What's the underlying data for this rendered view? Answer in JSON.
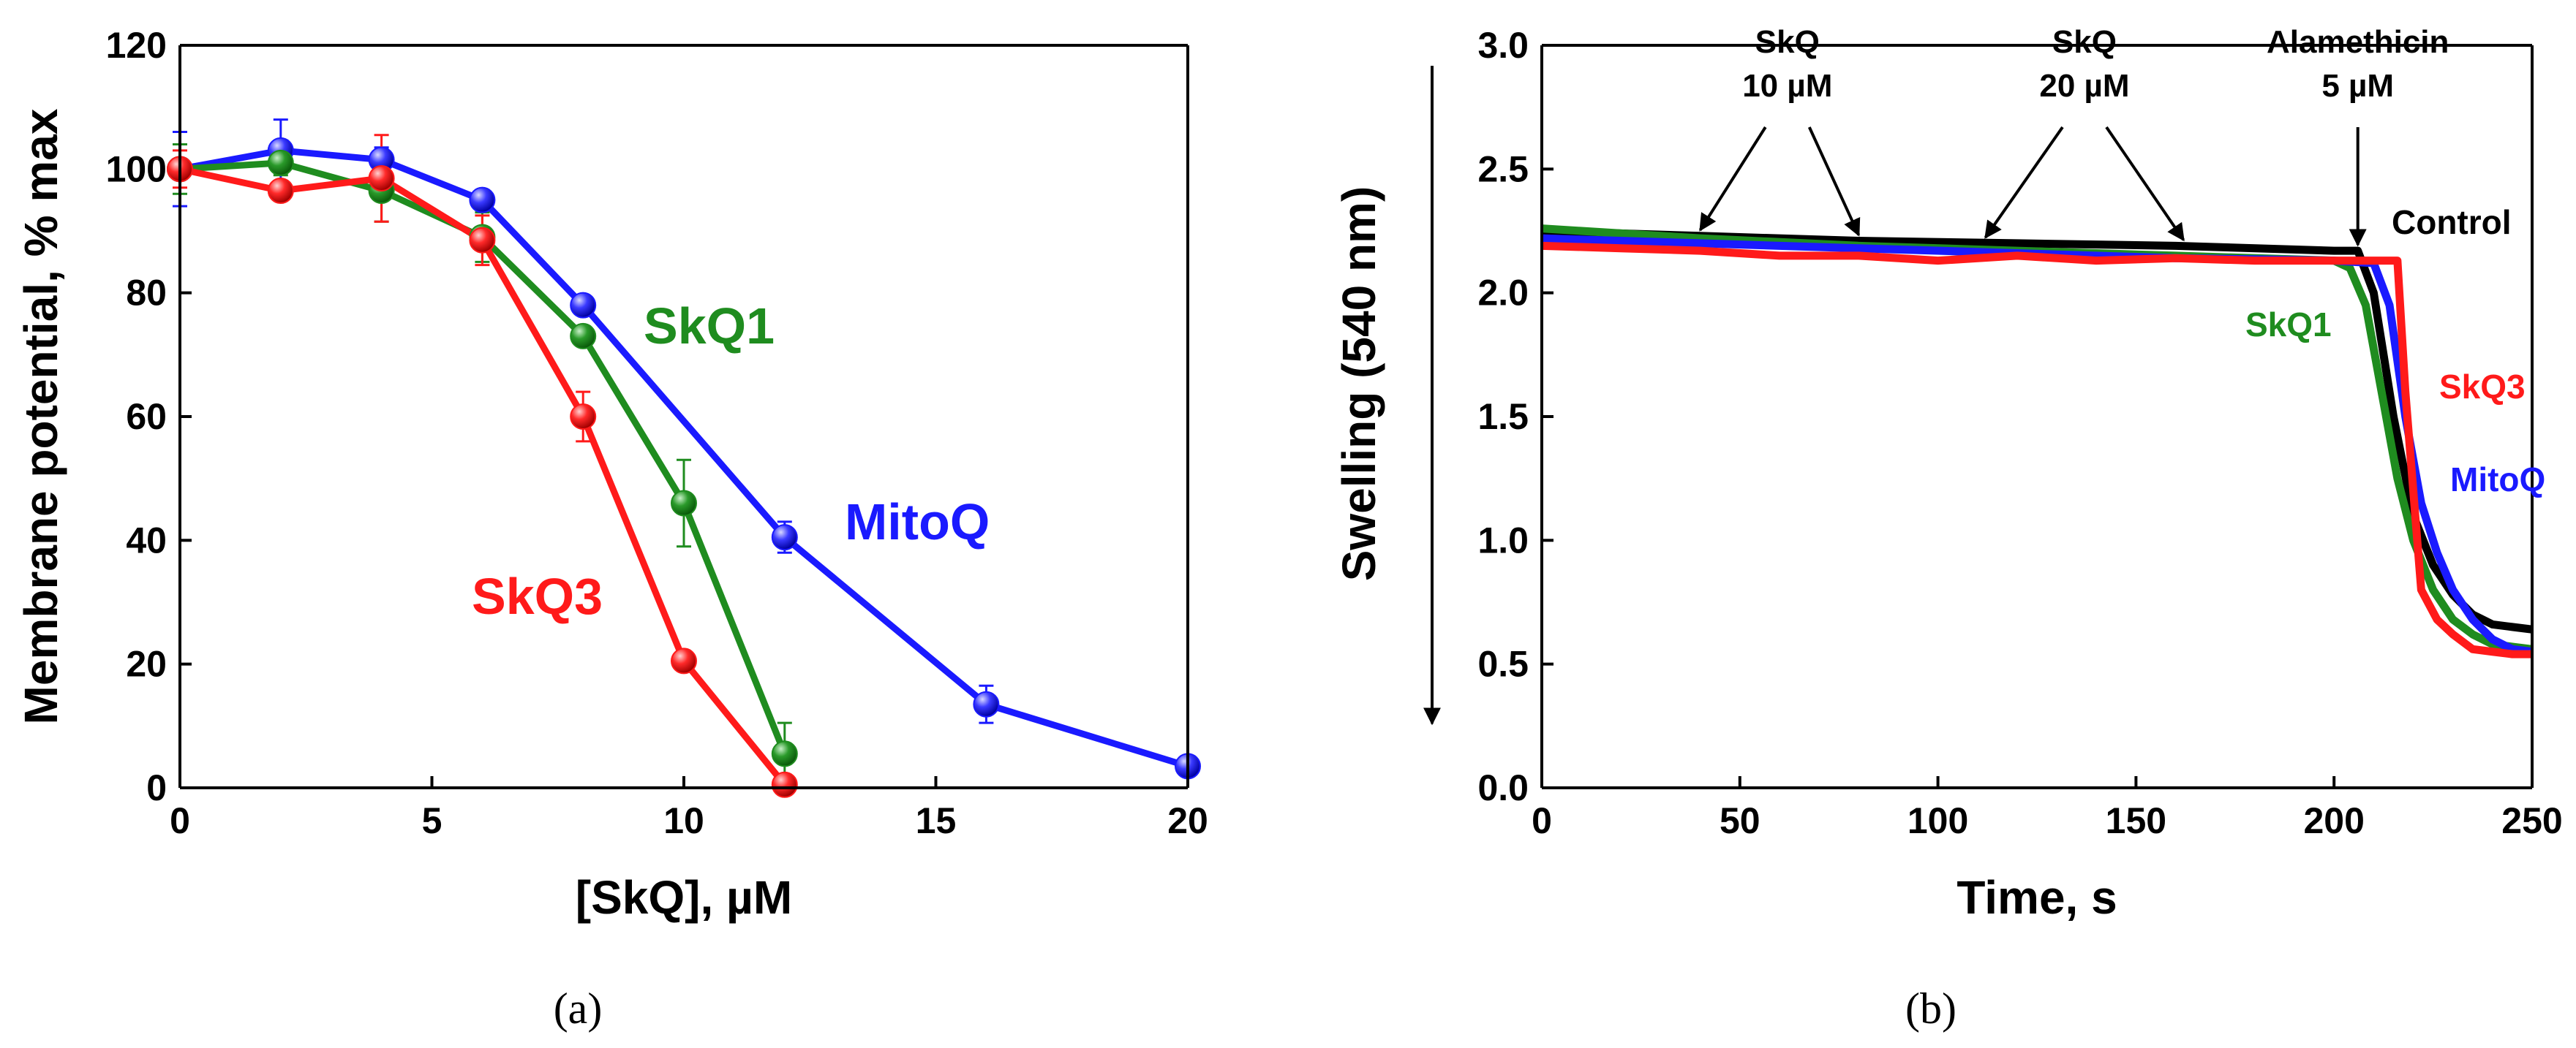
{
  "chart_data": [
    {
      "type": "line",
      "panel_label": "(a)",
      "xlabel": "[SkQ], µM",
      "ylabel": "Membrane potential, % max",
      "xlim": [
        0,
        20
      ],
      "ylim": [
        0,
        120
      ],
      "xticks": [
        0,
        5,
        10,
        15,
        20
      ],
      "yticks": [
        0,
        20,
        40,
        60,
        80,
        100,
        120
      ],
      "series": [
        {
          "name": "MitoQ",
          "color": "#1a1aff",
          "x": [
            0,
            2,
            4,
            6,
            8,
            12,
            16,
            20
          ],
          "y": [
            100,
            103,
            101.5,
            95,
            78,
            40.5,
            13.5,
            3.5
          ],
          "err": [
            6,
            5,
            2,
            1.5,
            1.5,
            2.5,
            3,
            1
          ]
        },
        {
          "name": "SkQ1",
          "color": "#1f8c1f",
          "x": [
            0,
            2,
            4,
            6,
            8,
            10,
            12
          ],
          "y": [
            100,
            101,
            96.5,
            89,
            73,
            46,
            5.5
          ],
          "err": [
            4,
            2,
            5,
            4,
            1.5,
            7,
            5
          ]
        },
        {
          "name": "SkQ3",
          "color": "#ff1a1a",
          "x": [
            0,
            2,
            4,
            6,
            8,
            10,
            12
          ],
          "y": [
            100,
            96.5,
            98.5,
            88.5,
            60,
            20.5,
            0.5
          ],
          "err": [
            3,
            1.5,
            7,
            4,
            4,
            1,
            1
          ]
        }
      ],
      "annotations": [
        "SkQ1",
        "MitoQ",
        "SkQ3"
      ]
    },
    {
      "type": "line",
      "panel_label": "(b)",
      "xlabel": "Time, s",
      "ylabel": "Swelling (540 nm)",
      "xlim": [
        0,
        250
      ],
      "ylim": [
        0,
        3.0
      ],
      "xticks": [
        0,
        50,
        100,
        150,
        200,
        250
      ],
      "yticks": [
        "0.0",
        "0.5",
        "1.0",
        "1.5",
        "2.0",
        "2.5",
        "3.0"
      ],
      "series": [
        {
          "name": "Control",
          "color": "#000000",
          "x": [
            0,
            40,
            80,
            120,
            160,
            200,
            206,
            210,
            215,
            220,
            225,
            230,
            235,
            240,
            245,
            250
          ],
          "y": [
            2.25,
            2.23,
            2.21,
            2.2,
            2.19,
            2.17,
            2.17,
            2.0,
            1.5,
            1.1,
            0.9,
            0.78,
            0.7,
            0.66,
            0.65,
            0.64
          ]
        },
        {
          "name": "SkQ1",
          "color": "#1f8c1f",
          "x": [
            0,
            40,
            80,
            120,
            160,
            200,
            204,
            208,
            212,
            216,
            220,
            225,
            230,
            235,
            240,
            245,
            250
          ],
          "y": [
            2.26,
            2.22,
            2.19,
            2.17,
            2.15,
            2.13,
            2.1,
            1.95,
            1.6,
            1.25,
            1.0,
            0.8,
            0.68,
            0.62,
            0.58,
            0.57,
            0.56
          ]
        },
        {
          "name": "MitoQ",
          "color": "#1a1aff",
          "x": [
            0,
            40,
            80,
            120,
            160,
            200,
            210,
            214,
            218,
            222,
            226,
            230,
            235,
            240,
            245,
            250
          ],
          "y": [
            2.22,
            2.2,
            2.18,
            2.16,
            2.14,
            2.13,
            2.12,
            1.95,
            1.5,
            1.15,
            0.95,
            0.8,
            0.68,
            0.6,
            0.56,
            0.55
          ]
        },
        {
          "name": "SkQ3",
          "color": "#ff1a1a",
          "x": [
            0,
            20,
            40,
            60,
            80,
            100,
            120,
            140,
            160,
            180,
            200,
            216,
            218,
            222,
            226,
            230,
            235,
            240,
            245,
            250
          ],
          "y": [
            2.19,
            2.18,
            2.17,
            2.15,
            2.15,
            2.13,
            2.15,
            2.13,
            2.14,
            2.13,
            2.13,
            2.13,
            1.6,
            0.8,
            0.68,
            0.62,
            0.56,
            0.55,
            0.54,
            0.54
          ]
        }
      ],
      "arrows": [
        {
          "label": [
            "SkQ",
            "10 µM"
          ],
          "text_x": 62,
          "targets": [
            {
              "x": 40,
              "y": 2.23
            },
            {
              "x": 80,
              "y": 2.21
            }
          ]
        },
        {
          "label": [
            "SkQ",
            "20 µM"
          ],
          "text_x": 137,
          "targets": [
            {
              "x": 112,
              "y": 2.2
            },
            {
              "x": 162,
              "y": 2.19
            }
          ]
        },
        {
          "label": [
            "Alamethicin",
            "5 µM"
          ],
          "text_x": 206,
          "targets": [
            {
              "x": 206,
              "y": 2.17
            }
          ]
        }
      ],
      "annotations": [
        "Control",
        "SkQ1",
        "SkQ3",
        "MitoQ"
      ]
    }
  ]
}
